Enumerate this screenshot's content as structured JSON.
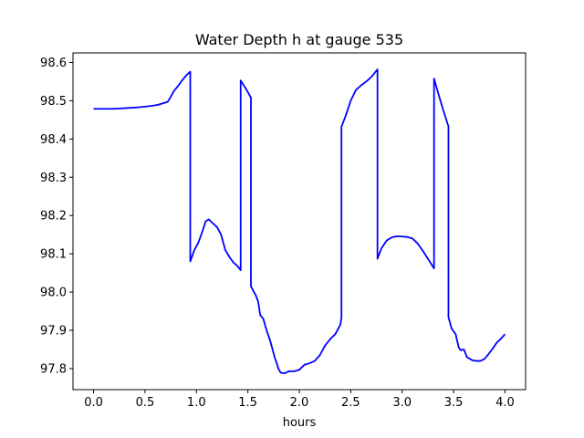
{
  "chart_data": {
    "type": "line",
    "title": "Water Depth h at gauge 535",
    "xlabel": "hours",
    "ylabel": "",
    "xlim": [
      -0.2,
      4.2
    ],
    "ylim": [
      97.745,
      98.625
    ],
    "xticks": [
      0.0,
      0.5,
      1.0,
      1.5,
      2.0,
      2.5,
      3.0,
      3.5,
      4.0
    ],
    "xtick_labels": [
      "0.0",
      "0.5",
      "1.0",
      "1.5",
      "2.0",
      "2.5",
      "3.0",
      "3.5",
      "4.0"
    ],
    "yticks": [
      97.8,
      97.9,
      98.0,
      98.1,
      98.2,
      98.3,
      98.4,
      98.5,
      98.6
    ],
    "ytick_labels": [
      "97.8",
      "97.9",
      "98.0",
      "98.1",
      "98.2",
      "98.3",
      "98.4",
      "98.5",
      "98.6"
    ],
    "grid": false,
    "series": [
      {
        "color": "#0000ff",
        "x": [
          0.0,
          0.2,
          0.4,
          0.55,
          0.62,
          0.66,
          0.72,
          0.75,
          0.78,
          0.82,
          0.86,
          0.9,
          0.94,
          0.94,
          0.98,
          1.02,
          1.06,
          1.09,
          1.12,
          1.15,
          1.2,
          1.24,
          1.28,
          1.32,
          1.36,
          1.4,
          1.43,
          1.43,
          1.48,
          1.53,
          1.53,
          1.58,
          1.6,
          1.62,
          1.65,
          1.68,
          1.72,
          1.76,
          1.8,
          1.82,
          1.86,
          1.9,
          1.95,
          2.0,
          2.05,
          2.1,
          2.15,
          2.2,
          2.25,
          2.3,
          2.35,
          2.4,
          2.41,
          2.41,
          2.45,
          2.5,
          2.55,
          2.6,
          2.65,
          2.7,
          2.76,
          2.76,
          2.8,
          2.85,
          2.9,
          2.95,
          3.0,
          3.05,
          3.1,
          3.15,
          3.2,
          3.26,
          3.31,
          3.31,
          3.35,
          3.4,
          3.45,
          3.45,
          3.48,
          3.52,
          3.55,
          3.57,
          3.6,
          3.63,
          3.68,
          3.72,
          3.76,
          3.8,
          3.84,
          3.88,
          3.92,
          3.96,
          4.0
        ],
        "y": [
          98.479,
          98.479,
          98.482,
          98.486,
          98.489,
          98.492,
          98.497,
          98.51,
          98.525,
          98.538,
          98.553,
          98.566,
          98.576,
          98.08,
          98.11,
          98.13,
          98.16,
          98.185,
          98.19,
          98.182,
          98.17,
          98.15,
          98.11,
          98.092,
          98.077,
          98.068,
          98.057,
          98.553,
          98.532,
          98.508,
          98.015,
          97.99,
          97.975,
          97.94,
          97.93,
          97.902,
          97.87,
          97.83,
          97.798,
          97.789,
          97.788,
          97.793,
          97.793,
          97.797,
          97.81,
          97.814,
          97.82,
          97.835,
          97.86,
          97.877,
          97.89,
          97.915,
          97.935,
          98.432,
          98.46,
          98.5,
          98.528,
          98.54,
          98.55,
          98.562,
          98.582,
          98.087,
          98.115,
          98.135,
          98.143,
          98.146,
          98.145,
          98.144,
          98.14,
          98.127,
          98.108,
          98.083,
          98.062,
          98.558,
          98.52,
          98.475,
          98.433,
          97.935,
          97.905,
          97.89,
          97.855,
          97.848,
          97.85,
          97.83,
          97.822,
          97.82,
          97.82,
          97.825,
          97.838,
          97.852,
          97.868,
          97.878,
          97.89
        ]
      }
    ]
  }
}
